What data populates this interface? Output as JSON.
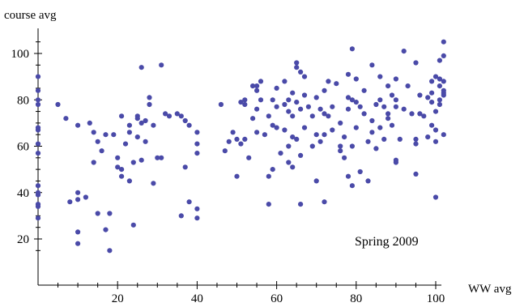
{
  "chart_data": {
    "type": "scatter",
    "title": "",
    "xlabel": "WW avg",
    "ylabel": "course avg",
    "annotation": "Spring 2009",
    "xlim": [
      0,
      104
    ],
    "ylim": [
      12,
      106
    ],
    "grid": false,
    "legend": "none",
    "x_ticks": [
      20,
      40,
      60,
      80,
      100
    ],
    "y_ticks": [
      20,
      40,
      60,
      80,
      100
    ],
    "marker_color": "#4a4aa8",
    "series": [
      {
        "points": [
          [
            0,
            90
          ],
          [
            0,
            84
          ],
          [
            0,
            80
          ],
          [
            0,
            78
          ],
          [
            0,
            68
          ],
          [
            0,
            67
          ],
          [
            0,
            61
          ],
          [
            0,
            57
          ],
          [
            0,
            43
          ],
          [
            0,
            40
          ],
          [
            0,
            39
          ],
          [
            0,
            35
          ],
          [
            0,
            34
          ],
          [
            0,
            29
          ],
          [
            5,
            78
          ],
          [
            7,
            72
          ],
          [
            8,
            36
          ],
          [
            10,
            40
          ],
          [
            10,
            69
          ],
          [
            10,
            37
          ],
          [
            10,
            23
          ],
          [
            10,
            18
          ],
          [
            12,
            38
          ],
          [
            13,
            70
          ],
          [
            14,
            53
          ],
          [
            14,
            66
          ],
          [
            15,
            31
          ],
          [
            15,
            62
          ],
          [
            16,
            58
          ],
          [
            17,
            24
          ],
          [
            17,
            65
          ],
          [
            18,
            31
          ],
          [
            18,
            15
          ],
          [
            19,
            65
          ],
          [
            20,
            55
          ],
          [
            20,
            51
          ],
          [
            21,
            50
          ],
          [
            21,
            73
          ],
          [
            21,
            47
          ],
          [
            22,
            61
          ],
          [
            23,
            69
          ],
          [
            23,
            66
          ],
          [
            23,
            45
          ],
          [
            24,
            53
          ],
          [
            24,
            26
          ],
          [
            25,
            73
          ],
          [
            25,
            72
          ],
          [
            25,
            64
          ],
          [
            26,
            94
          ],
          [
            26,
            70
          ],
          [
            26,
            54
          ],
          [
            27,
            71
          ],
          [
            27,
            62
          ],
          [
            28,
            81
          ],
          [
            28,
            78
          ],
          [
            29,
            69
          ],
          [
            29,
            44
          ],
          [
            30,
            55
          ],
          [
            31,
            95
          ],
          [
            31,
            55
          ],
          [
            32,
            74
          ],
          [
            33,
            73
          ],
          [
            35,
            74
          ],
          [
            36,
            73
          ],
          [
            36,
            30
          ],
          [
            37,
            51
          ],
          [
            37,
            71
          ],
          [
            38,
            69
          ],
          [
            38,
            36
          ],
          [
            40,
            66
          ],
          [
            40,
            61
          ],
          [
            40,
            33
          ],
          [
            40,
            29
          ],
          [
            40,
            57
          ],
          [
            46,
            78
          ],
          [
            47,
            58
          ],
          [
            48,
            62
          ],
          [
            49,
            66
          ],
          [
            50,
            63
          ],
          [
            50,
            47
          ],
          [
            51,
            79
          ],
          [
            51,
            61
          ],
          [
            52,
            80
          ],
          [
            52,
            78
          ],
          [
            52,
            63
          ],
          [
            53,
            55
          ],
          [
            54,
            86
          ],
          [
            54,
            72
          ],
          [
            55,
            84
          ],
          [
            55,
            86
          ],
          [
            55,
            76
          ],
          [
            55,
            66
          ],
          [
            56,
            88
          ],
          [
            56,
            80
          ],
          [
            57,
            65
          ],
          [
            58,
            73
          ],
          [
            58,
            47
          ],
          [
            58,
            35
          ],
          [
            59,
            80
          ],
          [
            59,
            69
          ],
          [
            59,
            50
          ],
          [
            60,
            85
          ],
          [
            60,
            77
          ],
          [
            60,
            68
          ],
          [
            61,
            57
          ],
          [
            62,
            88
          ],
          [
            62,
            78
          ],
          [
            62,
            67
          ],
          [
            63,
            80
          ],
          [
            63,
            75
          ],
          [
            63,
            60
          ],
          [
            63,
            53
          ],
          [
            64,
            64
          ],
          [
            64,
            51
          ],
          [
            64,
            83
          ],
          [
            64,
            73
          ],
          [
            65,
            96
          ],
          [
            65,
            94
          ],
          [
            65,
            79
          ],
          [
            65,
            63
          ],
          [
            66,
            92
          ],
          [
            66,
            76
          ],
          [
            66,
            56
          ],
          [
            66,
            35
          ],
          [
            67,
            90
          ],
          [
            67,
            82
          ],
          [
            67,
            68
          ],
          [
            68,
            77
          ],
          [
            69,
            60
          ],
          [
            69,
            73
          ],
          [
            70,
            81
          ],
          [
            70,
            65
          ],
          [
            70,
            45
          ],
          [
            71,
            62
          ],
          [
            71,
            76
          ],
          [
            72,
            84
          ],
          [
            72,
            74
          ],
          [
            72,
            65
          ],
          [
            72,
            36
          ],
          [
            73,
            88
          ],
          [
            73,
            73
          ],
          [
            74,
            77
          ],
          [
            74,
            67
          ],
          [
            75,
            87
          ],
          [
            76,
            70
          ],
          [
            76,
            60
          ],
          [
            76,
            58
          ],
          [
            77,
            64
          ],
          [
            77,
            55
          ],
          [
            78,
            91
          ],
          [
            78,
            76
          ],
          [
            78,
            81
          ],
          [
            78,
            47
          ],
          [
            79,
            102
          ],
          [
            79,
            80
          ],
          [
            79,
            60
          ],
          [
            79,
            43
          ],
          [
            80,
            89
          ],
          [
            80,
            79
          ],
          [
            80,
            68
          ],
          [
            81,
            77
          ],
          [
            81,
            49
          ],
          [
            82,
            74
          ],
          [
            82,
            84
          ],
          [
            83,
            45
          ],
          [
            83,
            62
          ],
          [
            84,
            95
          ],
          [
            84,
            71
          ],
          [
            84,
            66
          ],
          [
            85,
            78
          ],
          [
            85,
            59
          ],
          [
            86,
            90
          ],
          [
            86,
            80
          ],
          [
            86,
            68
          ],
          [
            87,
            77
          ],
          [
            87,
            63
          ],
          [
            88,
            86
          ],
          [
            88,
            72
          ],
          [
            88,
            74
          ],
          [
            89,
            69
          ],
          [
            89,
            82
          ],
          [
            90,
            89
          ],
          [
            90,
            80
          ],
          [
            90,
            77
          ],
          [
            90,
            54
          ],
          [
            90,
            53
          ],
          [
            91,
            63
          ],
          [
            92,
            76
          ],
          [
            92,
            101
          ],
          [
            93,
            86
          ],
          [
            94,
            74
          ],
          [
            95,
            63
          ],
          [
            95,
            96
          ],
          [
            95,
            61
          ],
          [
            95,
            48
          ],
          [
            96,
            82
          ],
          [
            96,
            74
          ],
          [
            97,
            73
          ],
          [
            98,
            81
          ],
          [
            98,
            64
          ],
          [
            99,
            79
          ],
          [
            99,
            88
          ],
          [
            99,
            83
          ],
          [
            99,
            69
          ],
          [
            100,
            90
          ],
          [
            100,
            75
          ],
          [
            100,
            67
          ],
          [
            100,
            38
          ],
          [
            100,
            62
          ],
          [
            101,
            97
          ],
          [
            101,
            89
          ],
          [
            101,
            86
          ],
          [
            101,
            80
          ],
          [
            101,
            78
          ],
          [
            102,
            105
          ],
          [
            102,
            99
          ],
          [
            102,
            88
          ],
          [
            102,
            84
          ],
          [
            102,
            83
          ],
          [
            102,
            82
          ],
          [
            102,
            65
          ]
        ]
      }
    ]
  }
}
